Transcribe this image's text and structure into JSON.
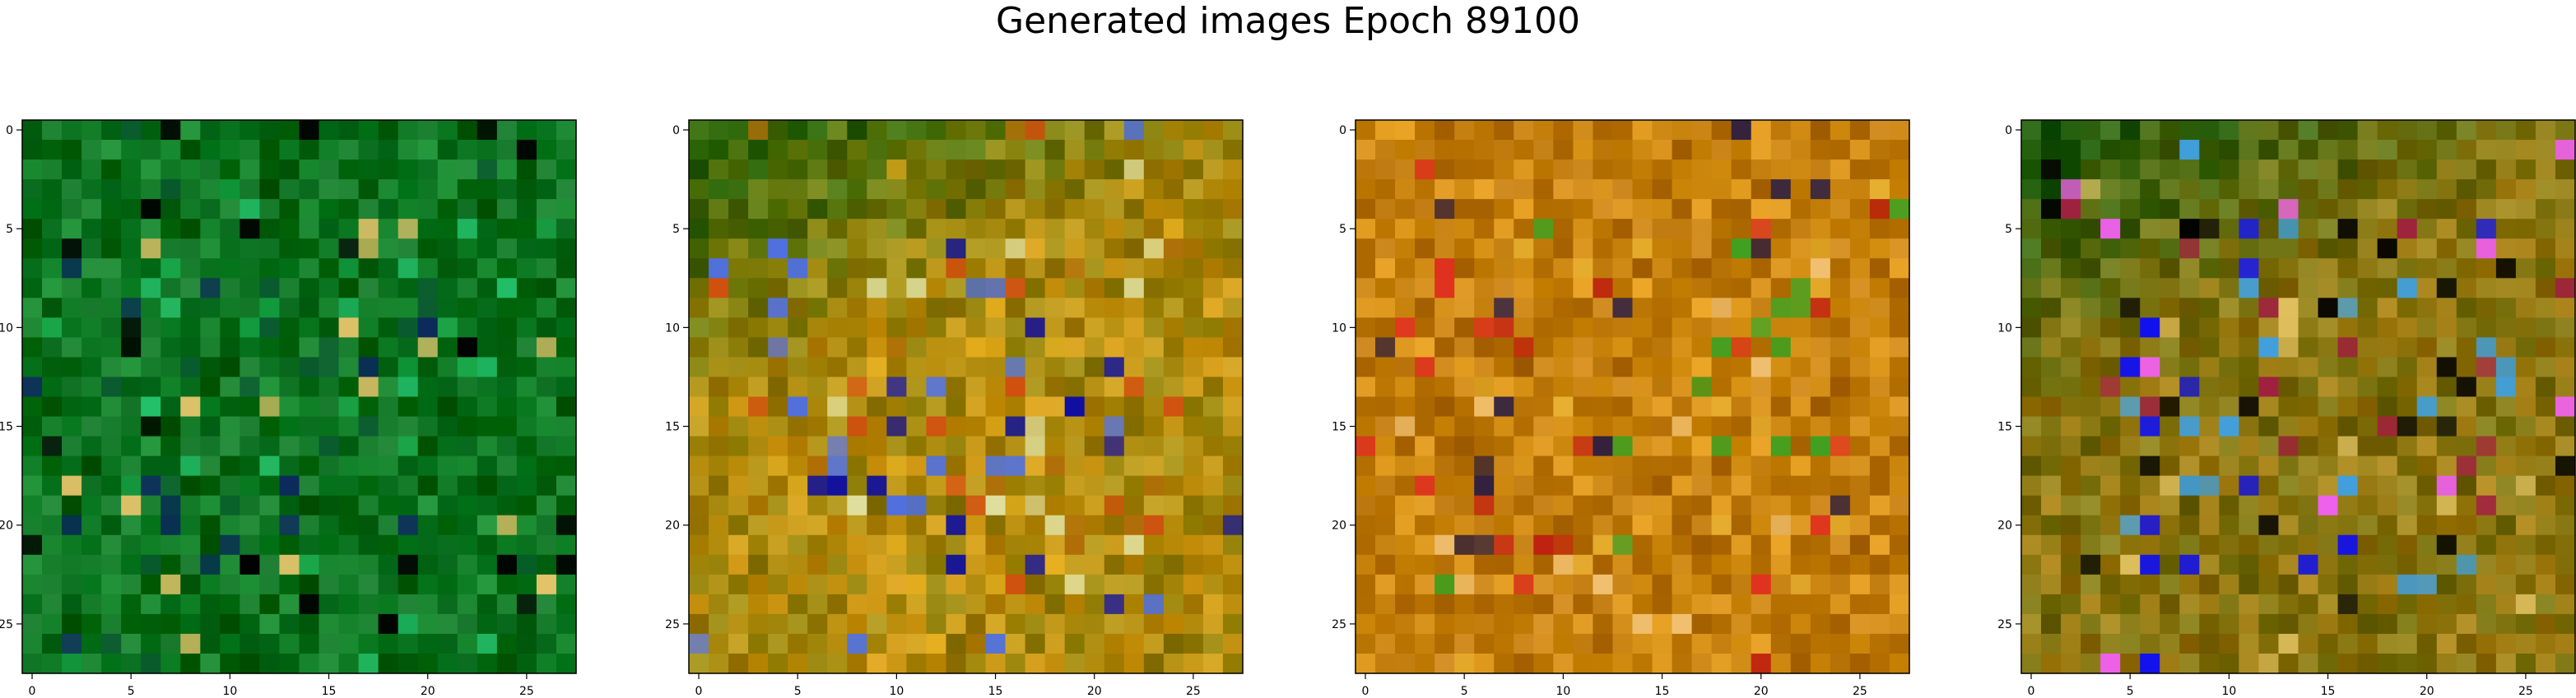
{
  "title": "Generated images Epoch 89100",
  "chart_data": [
    {
      "type": "heatmap",
      "subplot": 1,
      "grid": false,
      "xlim": [
        -0.5,
        27.5
      ],
      "ylim": [
        27.5,
        -0.5
      ],
      "xticks": [
        "0",
        "5",
        "10",
        "15",
        "20",
        "25"
      ],
      "yticks": [
        "0",
        "5",
        "10",
        "15",
        "20",
        "25"
      ],
      "palette": {
        "base": "#0b7d22",
        "dark": "#003f10",
        "accents": [
          "#1aa84a",
          "#23c06a",
          "#0a5a30",
          "#000000",
          "#0c2a5c",
          "#e6c46b"
        ]
      }
    },
    {
      "type": "heatmap",
      "subplot": 2,
      "grid": false,
      "xlim": [
        -0.5,
        27.5
      ],
      "ylim": [
        27.5,
        -0.5
      ],
      "xticks": [
        "0",
        "5",
        "10",
        "15",
        "20",
        "25"
      ],
      "yticks": [
        "0",
        "5",
        "10",
        "15",
        "20",
        "25"
      ],
      "palette": {
        "base": "#c8900c",
        "dark": "#2a6406",
        "accents": [
          "#e8b020",
          "#d05010",
          "#b06e08",
          "#5070e0",
          "#1010a0",
          "#e0e0a0"
        ]
      }
    },
    {
      "type": "heatmap",
      "subplot": 3,
      "grid": false,
      "xlim": [
        -0.5,
        27.5
      ],
      "ylim": [
        27.5,
        -0.5
      ],
      "xticks": [
        "0",
        "5",
        "10",
        "15",
        "20",
        "25"
      ],
      "yticks": [
        "0",
        "5",
        "10",
        "15",
        "20",
        "25"
      ],
      "palette": {
        "base": "#d08a0c",
        "dark": "#8a4a06",
        "accents": [
          "#e8b030",
          "#c02010",
          "#e03020",
          "#40a020",
          "#302040",
          "#f0c070"
        ]
      }
    },
    {
      "type": "heatmap",
      "subplot": 4,
      "grid": false,
      "xlim": [
        -0.5,
        27.5
      ],
      "ylim": [
        27.5,
        -0.5
      ],
      "xticks": [
        "0",
        "5",
        "10",
        "15",
        "20",
        "25"
      ],
      "yticks": [
        "0",
        "5",
        "10",
        "15",
        "20",
        "25"
      ],
      "palette": {
        "base": "#a07a10",
        "dark": "#1f5a08",
        "accents": [
          "#1010f0",
          "#e0c060",
          "#a02040",
          "#f060f0",
          "#40a0e0",
          "#000000"
        ]
      }
    }
  ]
}
